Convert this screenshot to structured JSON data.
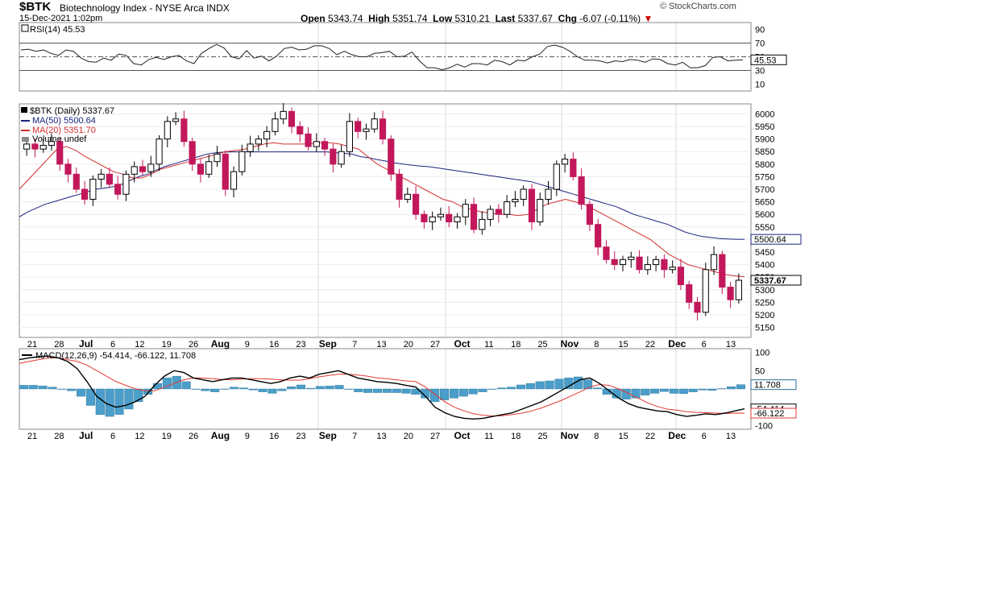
{
  "header": {
    "symbol": "$BTK",
    "company": "Biotechnology Index - NYSE Arca INDX",
    "datetime": "15-Dec-2021 1:02pm",
    "brand": "© StockCharts.com",
    "open_label": "Open",
    "open_value": "5343.74",
    "high_label": "High",
    "high_value": "5351.74",
    "low_label": "Low",
    "low_value": "5310.21",
    "last_label": "Last",
    "last_value": "5337.67",
    "chg_label": "Chg",
    "chg_value": "-6.07 (-0.11%)",
    "chg_arrow": "down-arrow-icon"
  },
  "chart_data": [
    {
      "type": "line",
      "panel": "rsi",
      "label": "RSI(14) 45.53",
      "ylim": [
        0,
        100
      ],
      "y_ticks": [
        "90",
        "70",
        "50",
        "30",
        "10"
      ],
      "lines": [
        70,
        50,
        30
      ],
      "current": "45.53",
      "values": [
        60,
        61,
        58,
        60,
        55,
        52,
        60,
        58,
        48,
        43,
        42,
        48,
        45,
        54,
        52,
        40,
        38,
        46,
        49,
        46,
        50,
        52,
        44,
        40,
        55,
        62,
        68,
        63,
        50,
        47,
        59,
        48,
        51,
        44,
        51,
        62,
        64,
        60,
        61,
        66,
        66,
        62,
        53,
        58,
        53,
        50,
        50,
        55,
        56,
        58,
        50,
        51,
        57,
        44,
        34,
        34,
        31,
        34,
        39,
        35,
        40,
        40,
        38,
        45,
        43,
        38,
        45,
        44,
        50,
        54,
        65,
        67,
        64,
        58,
        50,
        45,
        45,
        44,
        41,
        44,
        43,
        46,
        45,
        42,
        47,
        46,
        40,
        38,
        42,
        34,
        34,
        37,
        49,
        50,
        44,
        45,
        45.53
      ]
    },
    {
      "type": "candlestick",
      "panel": "price",
      "legend": [
        "$BTK (Daily) 5337.67",
        "MA(50) 5500.64",
        "MA(20) 5351.70",
        "Volume undef"
      ],
      "ylim": [
        5110,
        6040
      ],
      "y_ticks": [
        "6000",
        "5950",
        "5900",
        "5850",
        "5800",
        "5750",
        "5700",
        "5650",
        "5600",
        "5550",
        "5500",
        "5450",
        "5400",
        "5350",
        "5300",
        "5250",
        "5200",
        "5150"
      ],
      "ma50_label": "5500.64",
      "last_label": "5337.67",
      "x_labels": [
        "21",
        "28",
        "Jul",
        "6",
        "12",
        "19",
        "26",
        "Aug",
        "9",
        "16",
        "23",
        "Sep",
        "7",
        "13",
        "20",
        "27",
        "Oct",
        "11",
        "18",
        "25",
        "Nov",
        "8",
        "15",
        "22",
        "Dec",
        "6",
        "13"
      ],
      "bold_labels": [
        "Jul",
        "Aug",
        "Sep",
        "Oct",
        "Nov",
        "Dec"
      ],
      "close": [
        5880,
        5860,
        5875,
        5890,
        5800,
        5760,
        5700,
        5660,
        5740,
        5760,
        5720,
        5680,
        5760,
        5790,
        5770,
        5800,
        5900,
        5970,
        5980,
        5890,
        5800,
        5760,
        5810,
        5840,
        5700,
        5770,
        5850,
        5880,
        5900,
        5930,
        5980,
        6010,
        5950,
        5920,
        5870,
        5890,
        5860,
        5800,
        5850,
        5970,
        5930,
        5940,
        5980,
        5900,
        5760,
        5660,
        5680,
        5600,
        5570,
        5590,
        5600,
        5570,
        5590,
        5640,
        5540,
        5580,
        5620,
        5600,
        5650,
        5660,
        5700,
        5570,
        5660,
        5700,
        5800,
        5820,
        5750,
        5640,
        5560,
        5470,
        5420,
        5400,
        5420,
        5430,
        5380,
        5400,
        5420,
        5380,
        5390,
        5320,
        5250,
        5210,
        5380,
        5440,
        5310,
        5260,
        5337.67
      ],
      "ma50": [
        5590,
        5610,
        5625,
        5640,
        5650,
        5660,
        5670,
        5680,
        5690,
        5700,
        5705,
        5710,
        5720,
        5735,
        5750,
        5760,
        5775,
        5790,
        5800,
        5810,
        5820,
        5830,
        5840,
        5845,
        5848,
        5849,
        5849,
        5849,
        5849,
        5849,
        5849,
        5849,
        5849,
        5849,
        5849,
        5849,
        5849,
        5846,
        5843,
        5840,
        5830,
        5825,
        5818,
        5812,
        5805,
        5800,
        5796,
        5792,
        5790,
        5785,
        5780,
        5775,
        5770,
        5765,
        5760,
        5755,
        5750,
        5745,
        5740,
        5735,
        5730,
        5720,
        5710,
        5700,
        5690,
        5680,
        5670,
        5660,
        5650,
        5640,
        5630,
        5615,
        5600,
        5590,
        5580,
        5570,
        5560,
        5545,
        5530,
        5520,
        5512,
        5508,
        5504,
        5502,
        5501,
        5500.64
      ],
      "ma20": [
        5700,
        5740,
        5780,
        5820,
        5860,
        5870,
        5855,
        5830,
        5810,
        5790,
        5770,
        5760,
        5745,
        5745,
        5760,
        5780,
        5790,
        5800,
        5810,
        5820,
        5830,
        5840,
        5850,
        5855,
        5860,
        5870,
        5880,
        5885,
        5880,
        5880,
        5880,
        5882,
        5885,
        5885,
        5880,
        5870,
        5860,
        5830,
        5800,
        5780,
        5760,
        5740,
        5720,
        5700,
        5680,
        5660,
        5650,
        5630,
        5620,
        5610,
        5605,
        5600,
        5600,
        5595,
        5600,
        5620,
        5640,
        5650,
        5660,
        5650,
        5640,
        5620,
        5600,
        5580,
        5560,
        5540,
        5520,
        5500,
        5470,
        5440,
        5420,
        5400,
        5390,
        5380,
        5370,
        5360,
        5355,
        5351.7
      ],
      "volume": []
    },
    {
      "type": "line",
      "panel": "macd",
      "label": "MACD(12,26,9) -54.414, -66.122, 11.708",
      "ylim": [
        -110,
        110
      ],
      "y_ticks": [
        "100",
        "50",
        "-100"
      ],
      "macd": [
        80,
        85,
        88,
        90,
        85,
        75,
        55,
        20,
        -20,
        -40,
        -50,
        -45,
        -35,
        -20,
        10,
        35,
        50,
        45,
        30,
        25,
        20,
        25,
        30,
        30,
        25,
        20,
        15,
        20,
        30,
        35,
        30,
        40,
        45,
        50,
        40,
        30,
        25,
        20,
        18,
        15,
        10,
        5,
        -20,
        -50,
        -65,
        -75,
        -80,
        -82,
        -80,
        -75,
        -70,
        -65,
        -55,
        -45,
        -35,
        -20,
        -5,
        10,
        25,
        30,
        15,
        -5,
        -25,
        -40,
        -50,
        -55,
        -60,
        -62,
        -70,
        -75,
        -72,
        -68,
        -70,
        -66,
        -60,
        -54.414
      ],
      "signal": [
        70,
        75,
        80,
        85,
        85,
        80,
        75,
        65,
        50,
        35,
        20,
        10,
        0,
        -5,
        -5,
        5,
        15,
        25,
        30,
        30,
        28,
        26,
        25,
        27,
        28,
        28,
        27,
        25,
        24,
        24,
        28,
        33,
        37,
        40,
        40,
        38,
        35,
        30,
        28,
        25,
        22,
        20,
        5,
        -15,
        -35,
        -50,
        -60,
        -68,
        -72,
        -74,
        -73,
        -70,
        -66,
        -60,
        -52,
        -42,
        -32,
        -20,
        -8,
        5,
        12,
        10,
        0,
        -12,
        -25,
        -38,
        -48,
        -55,
        -58,
        -62,
        -64,
        -65,
        -66,
        -67,
        -66,
        -66.122
      ],
      "histogram": [
        10,
        10,
        8,
        5,
        0,
        -5,
        -20,
        -45,
        -70,
        -75,
        -70,
        -55,
        -35,
        -15,
        15,
        30,
        35,
        20,
        0,
        -5,
        -8,
        -1,
        5,
        3,
        -3,
        -8,
        -12,
        -5,
        6,
        11,
        2,
        7,
        8,
        10,
        0,
        -8,
        -10,
        -10,
        -10,
        -10,
        -12,
        -15,
        -25,
        -35,
        -30,
        -25,
        -20,
        -14,
        -8,
        -1,
        3,
        5,
        11,
        15,
        20,
        22,
        27,
        30,
        33,
        25,
        3,
        -15,
        -25,
        -28,
        -25,
        -17,
        -12,
        -7,
        -12,
        -13,
        -8,
        -3,
        -4,
        1,
        6,
        11.708
      ],
      "current_labels": {
        "histogram": "11.708",
        "macd": "-54.414",
        "signal": "-66.122"
      },
      "x_labels": [
        "21",
        "28",
        "Jul",
        "6",
        "12",
        "19",
        "26",
        "Aug",
        "9",
        "16",
        "23",
        "Sep",
        "7",
        "13",
        "20",
        "27",
        "Oct",
        "11",
        "18",
        "25",
        "Nov",
        "8",
        "15",
        "22",
        "Dec",
        "6",
        "13"
      ],
      "bold_labels": [
        "Jul",
        "Aug",
        "Sep",
        "Oct",
        "Nov",
        "Dec"
      ]
    }
  ]
}
